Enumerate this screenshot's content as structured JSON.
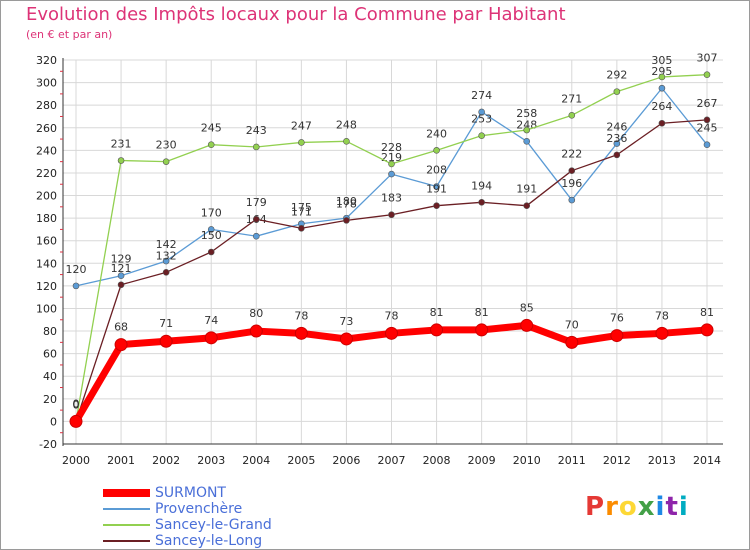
{
  "header": {
    "title": "Evolution des Impôts locaux pour la Commune par Habitant",
    "subtitle": "(en € et par an)"
  },
  "logo": {
    "text": "Proxiti",
    "colors": [
      "#e53935",
      "#fb8c00",
      "#fdd835",
      "#43a047",
      "#1e88e5",
      "#8e24aa",
      "#00acc1"
    ]
  },
  "chart_data": {
    "type": "line",
    "title": "Evolution des Impôts locaux pour la Commune par Habitant",
    "subtitle": "(en € et par an)",
    "xlabel": "",
    "ylabel": "",
    "ylim": [
      -20,
      320
    ],
    "yticks": [
      -20,
      0,
      20,
      40,
      60,
      80,
      100,
      120,
      140,
      160,
      180,
      200,
      220,
      240,
      260,
      280,
      300,
      320
    ],
    "grid": true,
    "legend_position": "bottom-left",
    "x": [
      "2000",
      "2001",
      "2002",
      "2003",
      "2004",
      "2005",
      "2006",
      "2007",
      "2008",
      "2009",
      "2010",
      "2011",
      "2012",
      "2013",
      "2014"
    ],
    "series": [
      {
        "name": "Provenchère",
        "color": "#5b9bd5",
        "values": [
          120,
          129,
          142,
          170,
          164,
          175,
          180,
          219,
          208,
          274,
          248,
          196,
          246,
          295,
          245
        ],
        "labels": [
          "120",
          "129",
          "142",
          "170",
          "164",
          "175",
          "180",
          "219",
          "208",
          "274",
          "248",
          "196",
          "246",
          "295",
          "245"
        ]
      },
      {
        "name": "Sancey-le-Grand",
        "color": "#92d050",
        "values": [
          0,
          231,
          230,
          245,
          243,
          247,
          248,
          228,
          240,
          253,
          258,
          271,
          292,
          305,
          307
        ],
        "labels": [
          "0",
          "231",
          "230",
          "245",
          "243",
          "247",
          "248",
          "228",
          "240",
          "253",
          "258",
          "271",
          "292",
          "305",
          "307"
        ]
      },
      {
        "name": "Sancey-le-Long",
        "color": "#6b1f24",
        "values": [
          0,
          121,
          132,
          150,
          179,
          171,
          178,
          183,
          191,
          194,
          191,
          222,
          236,
          264,
          267
        ],
        "labels": [
          "0",
          "121",
          "132",
          "150",
          "179",
          "171",
          "178",
          "183",
          "191",
          "194",
          "191",
          "222",
          "236",
          "264",
          "267"
        ]
      },
      {
        "name": "SURMONT",
        "color": "#ff0000",
        "values": [
          0,
          68,
          71,
          74,
          80,
          78,
          73,
          78,
          81,
          81,
          85,
          70,
          76,
          78,
          81
        ],
        "labels": [
          "0",
          "68",
          "71",
          "74",
          "80",
          "78",
          "73",
          "78",
          "81",
          "81",
          "85",
          "70",
          "76",
          "78",
          "81"
        ]
      }
    ]
  }
}
